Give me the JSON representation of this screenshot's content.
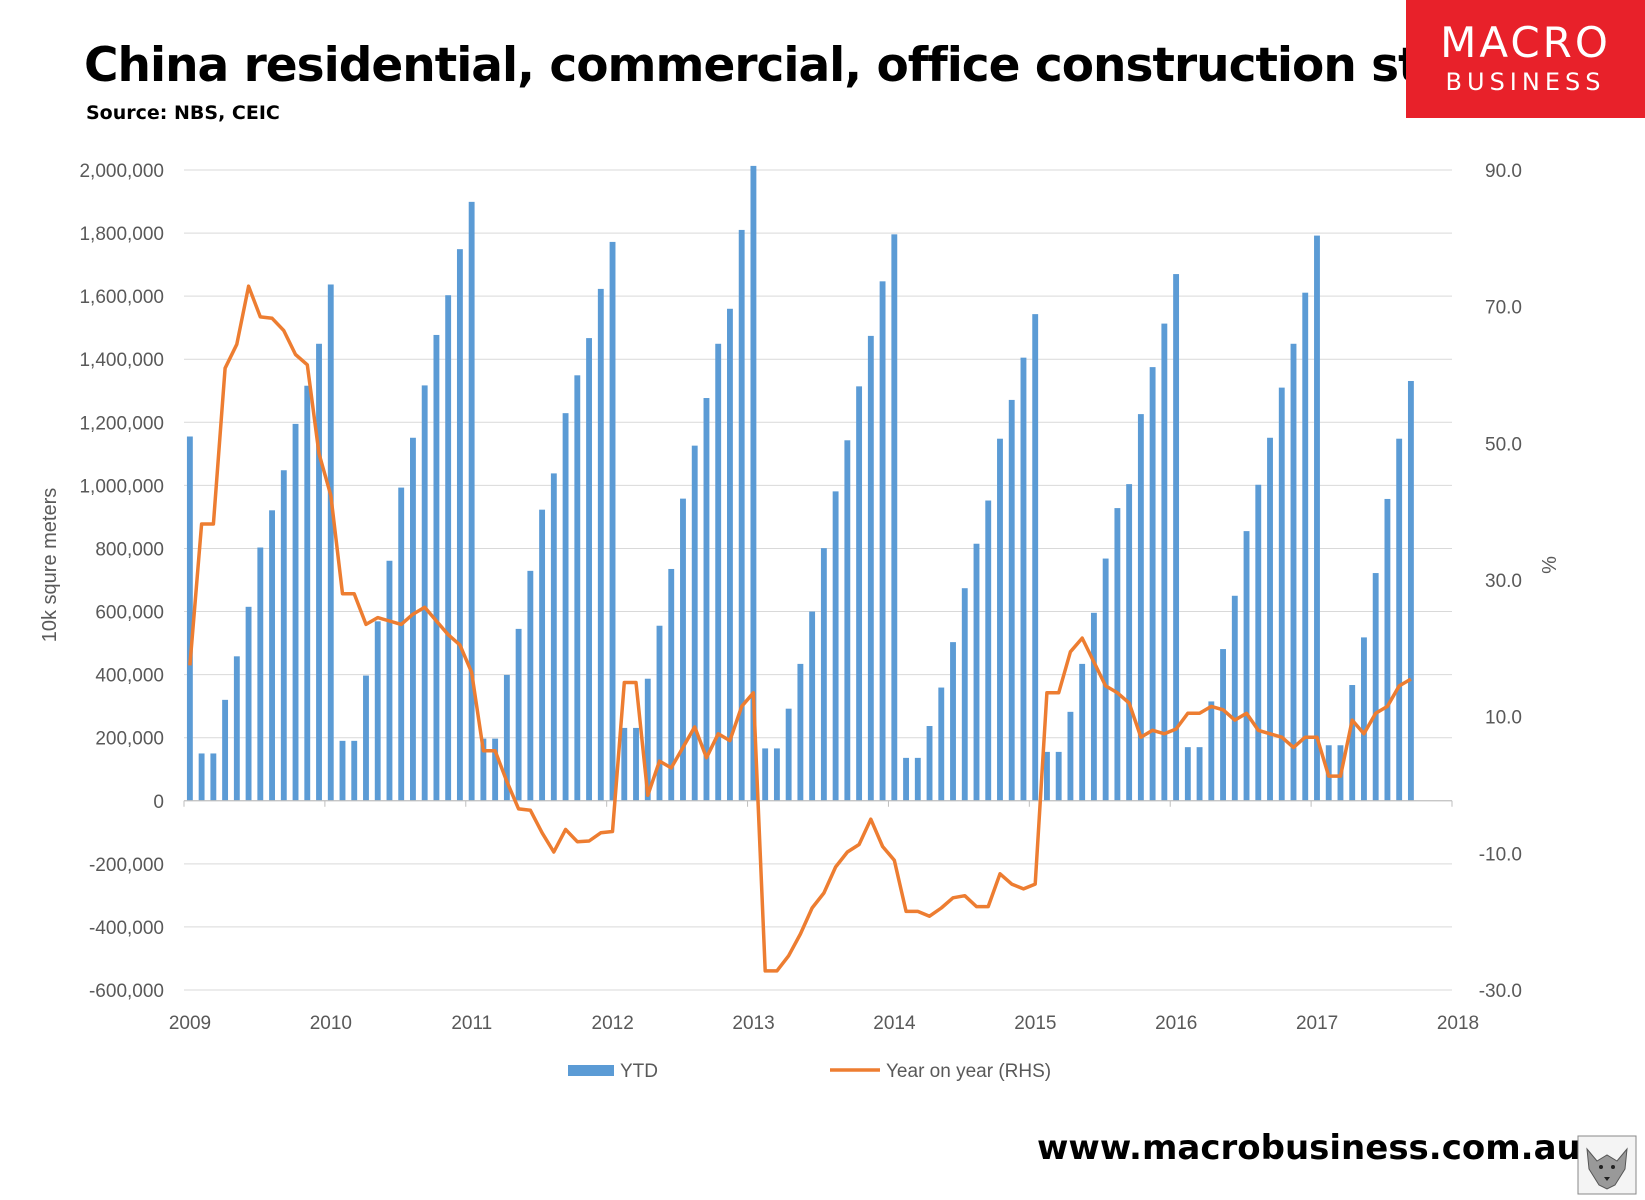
{
  "header": {
    "title": "China residential, commercial, office construction starts",
    "source": "Source: NBS, CEIC"
  },
  "logo": {
    "line1": "MACRO",
    "line2": "BUSINESS",
    "color": "#e8212a"
  },
  "footer": {
    "website": "www.macrobusiness.com.au"
  },
  "chart_data": {
    "type": "bar",
    "ylabel": "10k squre meters",
    "y2label": "%",
    "ylim": [
      -600000,
      2000000
    ],
    "y2lim": [
      -30,
      90
    ],
    "yticks": [
      "2,000,000",
      "1,800,000",
      "1,600,000",
      "1,400,000",
      "1,200,000",
      "1,000,000",
      "800,000",
      "600,000",
      "400,000",
      "200,000",
      "0",
      "-200,000",
      "-400,000",
      "-600,000"
    ],
    "y2ticks": [
      "90.0",
      "70.0",
      "50.0",
      "30.0",
      "10.0",
      "-10.0",
      "-30.0"
    ],
    "xticks": [
      "2009",
      "2010",
      "2011",
      "2012",
      "2013",
      "2014",
      "2015",
      "2016",
      "2017",
      "2018"
    ],
    "legend": "bottom",
    "gridlines": true,
    "colors": {
      "bars": "#5b9bd5",
      "line": "#ed7d31"
    },
    "series": [
      {
        "name": "YTD",
        "kind": "bar",
        "axis": "left",
        "start": "2009-01",
        "values": [
          1155000,
          150000,
          150000,
          320000,
          458000,
          615000,
          803000,
          921000,
          1048000,
          1195000,
          1316000,
          1449000,
          1637000,
          190000,
          190000,
          397000,
          569000,
          761000,
          993000,
          1151000,
          1317000,
          1477000,
          1603000,
          1749000,
          1899000,
          197000,
          197000,
          399000,
          545000,
          729000,
          923000,
          1038000,
          1229000,
          1349000,
          1467000,
          1623000,
          1772000,
          231000,
          231000,
          387000,
          555000,
          735000,
          958000,
          1126000,
          1277000,
          1449000,
          1560000,
          1810000,
          2013000,
          166000,
          166000,
          292000,
          434000,
          600000,
          801000,
          981000,
          1143000,
          1314000,
          1474000,
          1647000,
          1796000,
          136000,
          136000,
          237000,
          359000,
          503000,
          674000,
          815000,
          952000,
          1148000,
          1271000,
          1405000,
          1543000,
          155000,
          155000,
          282000,
          434000,
          596000,
          768000,
          928000,
          1004000,
          1226000,
          1375000,
          1513000,
          1670000,
          170000,
          170000,
          315000,
          481000,
          650000,
          855000,
          1002000,
          1151000,
          1310000,
          1449000,
          1611000,
          1792000,
          176000,
          176000,
          367000,
          518000,
          722000,
          957000,
          1148000,
          1331000
        ]
      },
      {
        "name": "Year on year (RHS)",
        "kind": "line",
        "axis": "right",
        "start": "2009-01",
        "values": [
          17.5,
          38.2,
          38.2,
          61,
          64.5,
          73,
          68.5,
          68.3,
          66.5,
          63,
          61.5,
          48.5,
          42.4,
          28,
          28,
          23.5,
          24.5,
          24,
          23.5,
          25,
          26,
          24,
          22,
          20.5,
          16.5,
          5,
          5,
          0.5,
          -3.5,
          -3.7,
          -7,
          -9.8,
          -6.5,
          -8.3,
          -8.2,
          -7,
          -6.8,
          15,
          15,
          -1.5,
          3.5,
          2.5,
          5.5,
          8.5,
          4,
          7.5,
          6.5,
          11.5,
          13.5,
          -27.2,
          -27.2,
          -25,
          -21.8,
          -18,
          -15.8,
          -12,
          -9.8,
          -8.7,
          -5,
          -9,
          -11,
          -18.5,
          -18.5,
          -19.2,
          -18,
          -16.5,
          -16.2,
          -17.8,
          -17.8,
          -13,
          -14.5,
          -15.2,
          -14.5,
          13.5,
          13.5,
          19.5,
          21.5,
          18,
          14.5,
          13.5,
          12,
          7,
          8,
          7.5,
          8.2,
          10.5,
          10.5,
          11.5,
          11,
          9.5,
          10.5,
          8,
          7.5,
          7,
          5.5,
          7,
          7,
          1.3,
          1.3,
          9.5,
          7.5,
          10.5,
          11.5,
          14.5,
          15.5
        ]
      }
    ]
  }
}
